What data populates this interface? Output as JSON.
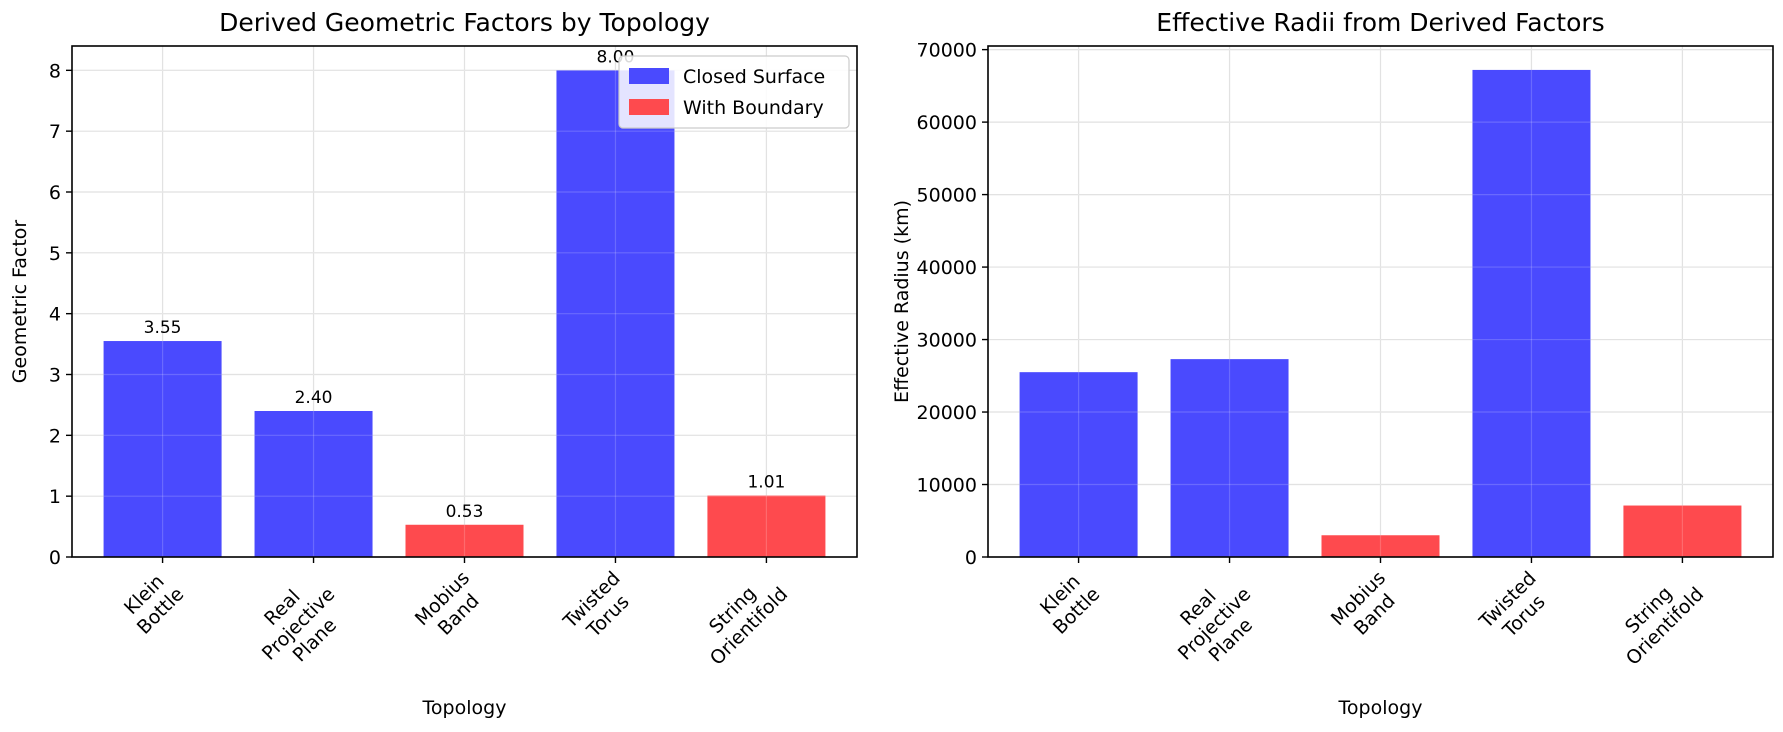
{
  "chart_data": [
    {
      "type": "bar",
      "title": "Derived Geometric Factors by Topology",
      "xlabel": "Topology",
      "ylabel": "Geometric Factor",
      "categories": [
        [
          "Klein",
          "Bottle"
        ],
        [
          "Real",
          "Projective",
          "Plane"
        ],
        [
          "Mobius",
          "Band"
        ],
        [
          "Twisted",
          "Torus"
        ],
        [
          "String",
          "Orientifold"
        ]
      ],
      "values": [
        3.55,
        2.4,
        0.53,
        8.0,
        1.01
      ],
      "data_labels": [
        "3.55",
        "2.40",
        "0.53",
        "8.00",
        "1.01"
      ],
      "bar_groups": [
        "Closed Surface",
        "Closed Surface",
        "With Boundary",
        "Closed Surface",
        "With Boundary"
      ],
      "ylim": [
        0,
        8.4
      ],
      "yticks": [
        0,
        1,
        2,
        3,
        4,
        5,
        6,
        7,
        8
      ],
      "grid": true,
      "legend": {
        "placement": "top-right",
        "entries": [
          {
            "name": "Closed Surface",
            "color": "#4a4afe"
          },
          {
            "name": "With Boundary",
            "color": "#fe4a4e"
          }
        ]
      }
    },
    {
      "type": "bar",
      "title": "Effective Radii from Derived Factors",
      "xlabel": "Topology",
      "ylabel": "Effective Radius (km)",
      "categories": [
        [
          "Klein",
          "Bottle"
        ],
        [
          "Real",
          "Projective",
          "Plane"
        ],
        [
          "Mobius",
          "Band"
        ],
        [
          "Twisted",
          "Torus"
        ],
        [
          "String",
          "Orientifold"
        ]
      ],
      "values": [
        25500,
        27300,
        3000,
        67200,
        7100
      ],
      "bar_groups": [
        "Closed Surface",
        "Closed Surface",
        "With Boundary",
        "Closed Surface",
        "With Boundary"
      ],
      "ylim": [
        0,
        70500
      ],
      "yticks": [
        0,
        10000,
        20000,
        30000,
        40000,
        50000,
        60000,
        70000
      ],
      "grid": true
    }
  ],
  "colors": {
    "Closed Surface": "#4a4afe",
    "With Boundary": "#fe4a4e"
  }
}
